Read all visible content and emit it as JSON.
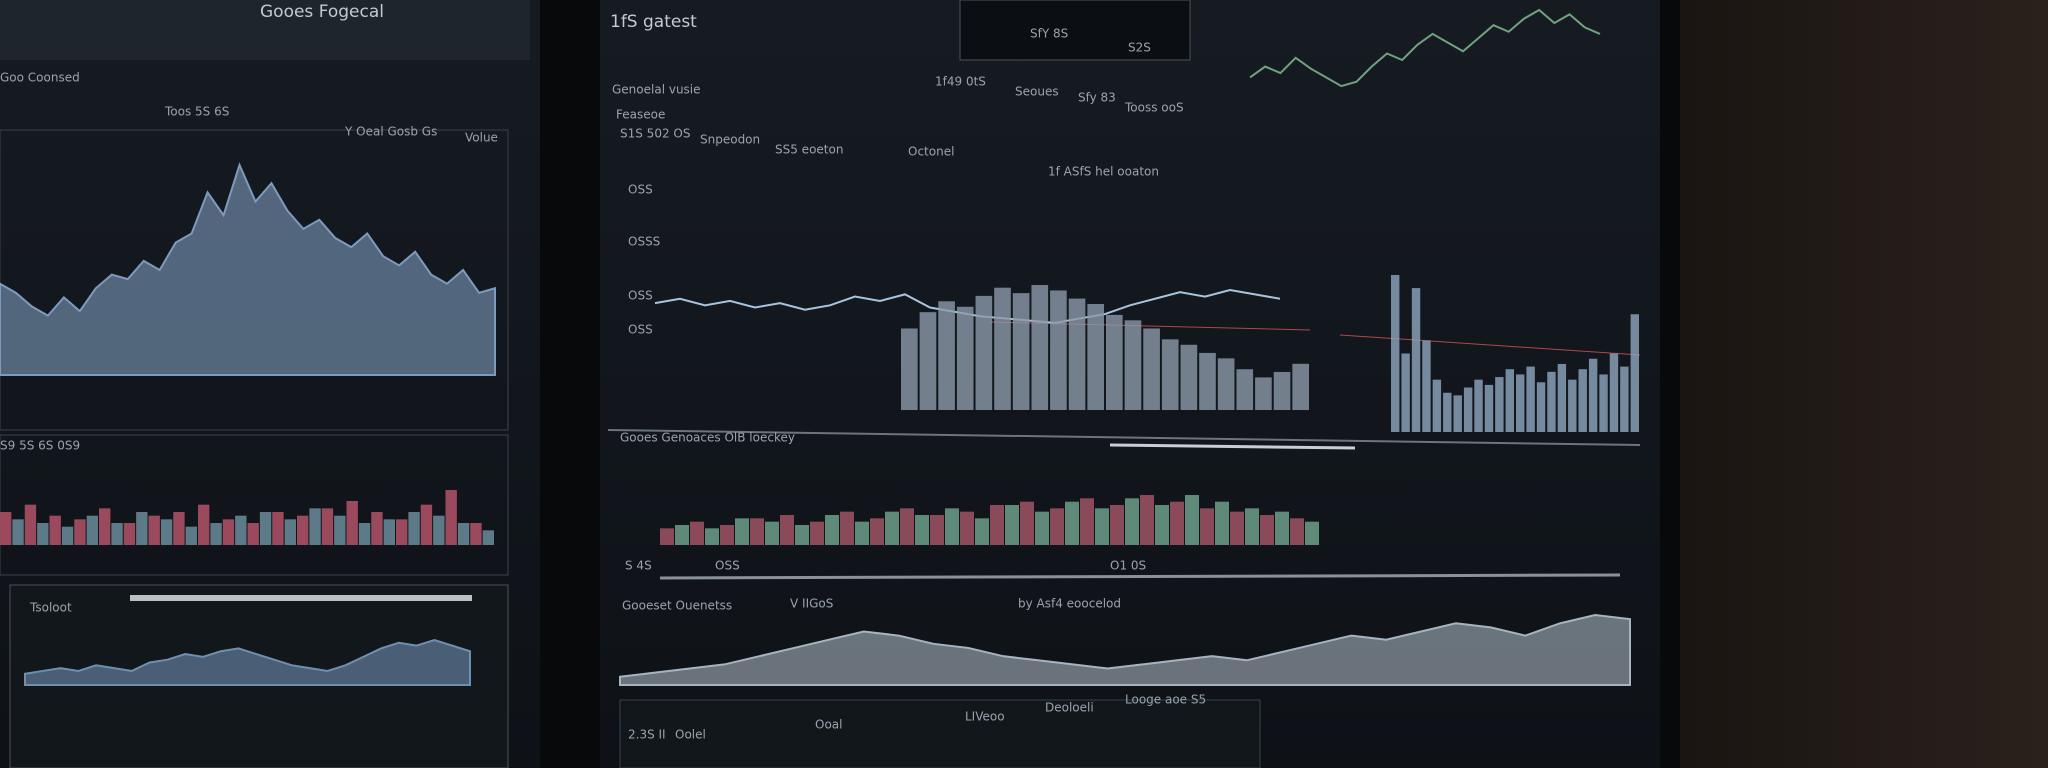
{
  "left_panel": {
    "title": "Gooes Fogecal",
    "header": "Goo Coonsed",
    "subtitle": "Toos 5S 6S",
    "label_a": "Y Oeal Gosb Gs",
    "label_b": "Volue",
    "label_c": "S9 5S 6S 0S9",
    "label_d": "Tsoloot",
    "area_chart": {
      "color": "#7d9bbd",
      "values": [
        40,
        36,
        30,
        26,
        34,
        28,
        38,
        44,
        42,
        50,
        46,
        58,
        62,
        80,
        70,
        92,
        76,
        84,
        72,
        64,
        68,
        60,
        56,
        62,
        52,
        48,
        54,
        44,
        40,
        46,
        36,
        38
      ]
    },
    "bar_chart": {
      "series": [
        {
          "color": "#9a4a5c",
          "values": [
            18,
            22,
            16,
            14,
            20,
            12,
            16,
            18,
            22,
            14,
            12,
            18,
            16,
            20,
            24,
            18,
            14,
            22,
            30,
            12
          ]
        },
        {
          "color": "#5d7a88",
          "values": [
            14,
            12,
            10,
            16,
            12,
            18,
            14,
            10,
            12,
            16,
            18,
            14,
            20,
            16,
            12,
            14,
            18,
            16,
            12,
            8
          ]
        }
      ]
    },
    "small_area": {
      "color": "#6f8fb0",
      "values": [
        8,
        10,
        12,
        10,
        14,
        12,
        10,
        16,
        18,
        22,
        20,
        24,
        26,
        22,
        18,
        14,
        12,
        10,
        14,
        20,
        26,
        30,
        28,
        32,
        28,
        24
      ]
    }
  },
  "main_panel": {
    "title": "1fS gatest",
    "header_left": "Genoelal vusie",
    "header_items": [
      "1f49 0tS",
      "Seoues",
      "Sfy 83",
      "Tooss ooS"
    ],
    "top_inset_label": "SfY 8S",
    "top_inset_value": "S2S",
    "subheader": "Feaseoe",
    "legend_items": [
      "S1S 502 OS",
      "Snpeodon",
      "SS5 eoeton"
    ],
    "chart_label": "Octonel",
    "chart_title": "1f ASfS hel ooaton",
    "y_labels": [
      "OSS",
      "OSSS",
      "OSS",
      "OSS"
    ],
    "line_chart": {
      "color": "#a8c4de",
      "values": [
        52,
        56,
        50,
        54,
        48,
        52,
        46,
        50,
        58,
        54,
        60,
        48,
        44,
        40,
        38,
        36,
        34,
        38,
        42,
        50,
        56,
        62,
        58,
        64,
        60,
        56
      ]
    },
    "column_chart": {
      "color": "#8c9aaa",
      "values": [
        60,
        72,
        80,
        76,
        84,
        90,
        86,
        92,
        88,
        82,
        78,
        70,
        66,
        60,
        52,
        48,
        42,
        38,
        30,
        24,
        28,
        34
      ]
    },
    "lower_header": "Gooes Genoaces OlB loeckey",
    "lower_items": [
      "S 4S",
      "OSS",
      "O1 0S"
    ],
    "red_green_bars": {
      "series": [
        {
          "color": "#8a4a5a",
          "values": [
            10,
            14,
            12,
            16,
            18,
            14,
            20,
            16,
            22,
            18,
            20,
            24,
            26,
            22,
            28,
            24,
            30,
            26,
            22,
            20,
            18,
            16
          ]
        },
        {
          "color": "#5f8a7a",
          "values": [
            12,
            10,
            16,
            14,
            12,
            18,
            14,
            20,
            18,
            22,
            16,
            24,
            20,
            26,
            22,
            28,
            24,
            30,
            26,
            22,
            20,
            14
          ]
        }
      ]
    },
    "bottom_header": "Gooeset Ouenetss",
    "bottom_items": [
      "V IIGoS",
      "by Asf4 eoocelod"
    ],
    "bottom_area": {
      "color": "#a7b4c0",
      "values": [
        4,
        6,
        8,
        10,
        14,
        18,
        22,
        26,
        24,
        20,
        18,
        14,
        12,
        10,
        8,
        10,
        12,
        14,
        12,
        16,
        20,
        24,
        22,
        26,
        30,
        28,
        24,
        30,
        34,
        32
      ]
    },
    "footer_items": [
      "2.3S II",
      "Oolel",
      "Ooal",
      "LIVeoo",
      "Deoloeli",
      "Looge aoe S5"
    ]
  },
  "right_panel": {
    "green_line": {
      "color": "#6fa37e",
      "values": [
        30,
        40,
        34,
        48,
        38,
        30,
        22,
        26,
        40,
        52,
        46,
        60,
        70,
        62,
        54,
        66,
        78,
        72,
        84,
        92,
        80,
        88,
        76,
        70
      ]
    },
    "bars": {
      "color": "#8ea6c0",
      "values": [
        120,
        60,
        110,
        70,
        40,
        30,
        28,
        34,
        40,
        36,
        42,
        48,
        44,
        50,
        38,
        46,
        52,
        40,
        48,
        56,
        44,
        60,
        50,
        90
      ]
    }
  }
}
